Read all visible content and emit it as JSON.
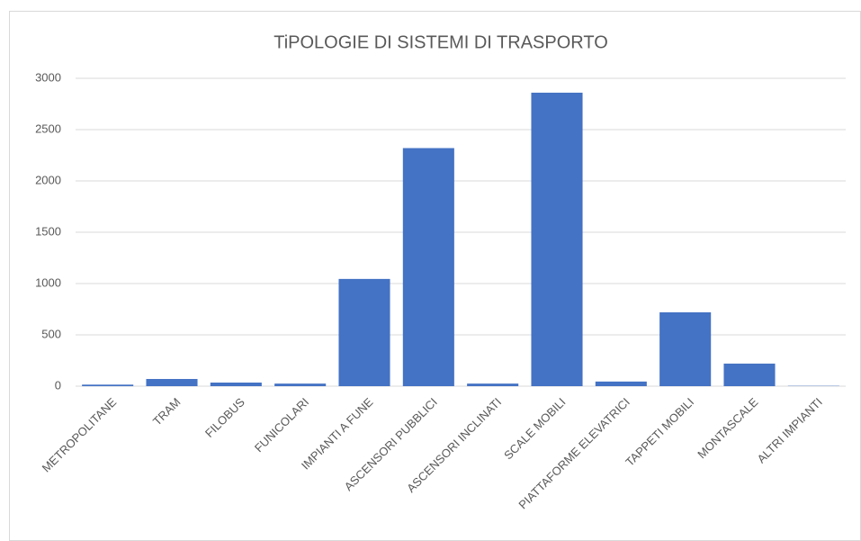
{
  "chart_data": {
    "type": "bar",
    "title": "TiPOLOGIE DI SISTEMI DI TRASPORTO",
    "categories": [
      "METROPOLITANE",
      "TRAM",
      "FILOBUS",
      "FUNICOLARI",
      "IMPIANTI A FUNE",
      "ASCENSORI PUBBLICI",
      "ASCENSORI INCLINATI",
      "SCALE MOBILI",
      "PIATTAFORME ELEVATRICI",
      "TAPPETI MOBILI",
      "MONTASCALE",
      "ALTRI IMPIANTI"
    ],
    "values": [
      15,
      70,
      35,
      25,
      1045,
      2320,
      25,
      2860,
      45,
      720,
      220,
      3
    ],
    "color": "#4472c4",
    "ylim": [
      0,
      3000
    ],
    "yticks": [
      0,
      500,
      1000,
      1500,
      2000,
      2500,
      3000
    ],
    "grid": true
  }
}
